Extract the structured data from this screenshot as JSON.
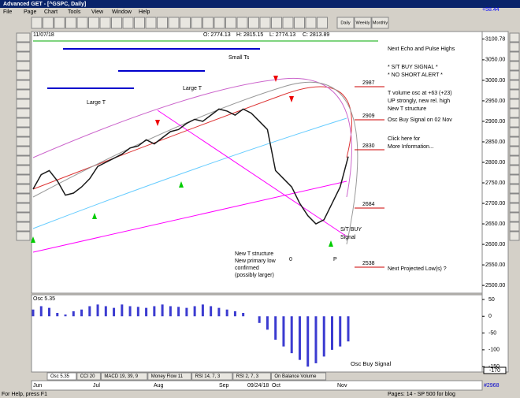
{
  "window": {
    "title": "Advanced GET - [^GSPC, Daily]",
    "change": "+58.44"
  },
  "menu": [
    "File",
    "Page",
    "Chart",
    "Tools",
    "View",
    "Window",
    "Help"
  ],
  "toolbar": [
    "Daily",
    "Weekly",
    "Monthly"
  ],
  "header": {
    "date": "11/07/18",
    "ohlc": [
      "O: 2774.13",
      "H: 2815.15",
      "L: 2774.13",
      "C: 2813.89"
    ]
  },
  "chart_data": {
    "type": "line",
    "color": "#1a1a1a",
    "values": [
      2735,
      2770,
      2780,
      2755,
      2720,
      2725,
      2740,
      2760,
      2790,
      2800,
      2810,
      2820,
      2835,
      2840,
      2855,
      2845,
      2860,
      2875,
      2880,
      2895,
      2905,
      2900,
      2915,
      2930,
      2925,
      2915,
      2930,
      2920,
      2900,
      2880,
      2780,
      2760,
      2740,
      2700,
      2670,
      2650,
      2660,
      2700,
      2740,
      2814
    ],
    "ylim": [
      2481,
      3119
    ],
    "yticks": [
      {
        "value": 3100.78,
        "label": "3100.78"
      },
      {
        "value": 3050,
        "label": "3050.00"
      },
      {
        "value": 3000,
        "label": "3000.00"
      },
      {
        "value": 2950,
        "label": "2950.00"
      },
      {
        "value": 2900,
        "label": "2900.00"
      },
      {
        "value": 2850,
        "label": "2850.00"
      },
      {
        "value": 2800,
        "label": "2800.00"
      },
      {
        "value": 2750,
        "label": "2750.00"
      },
      {
        "value": 2700,
        "label": "2700.00"
      },
      {
        "value": 2650,
        "label": "2650.00"
      },
      {
        "value": 2600,
        "label": "2600.00"
      },
      {
        "value": 2550,
        "label": "2550.00"
      },
      {
        "value": 2500,
        "label": "2500.00"
      }
    ]
  },
  "annotations": [
    "Next Echo and Pulse Highs",
    "* S/T BUY SIGNAL *",
    "* NO SHORT ALERT *",
    "2987",
    "T volume osc at +63 (+23)",
    "UP strongly, new rel. high",
    "New T structure",
    "2909",
    "Osc Buy Signal on 02 Nov",
    "Click here for",
    "More Information...",
    "2830",
    "2684",
    "S/T BUY",
    "Signal",
    "New T structure",
    "New primary low",
    "confirmed",
    "(possibly larger)",
    "0",
    "P",
    "2538",
    "Next Projected Low(s) ?",
    "Small Ts",
    "Large T",
    "Large T"
  ],
  "osc_panel": {
    "type": "bar",
    "title": "Osc 5.35",
    "color": "#3b3bd0",
    "values": [
      20,
      30,
      25,
      10,
      5,
      15,
      20,
      30,
      35,
      30,
      25,
      35,
      30,
      28,
      25,
      30,
      35,
      30,
      28,
      25,
      30,
      35,
      30,
      25,
      20,
      15,
      10,
      0,
      -20,
      -40,
      -70,
      -90,
      -110,
      -130,
      -150,
      -140,
      -120,
      -100,
      -90,
      -75
    ],
    "ylim": [
      -166,
      64
    ],
    "yticks": [
      50,
      0,
      -50,
      -100,
      -150
    ],
    "scale_box": -170,
    "annotation": "Osc Buy Signal"
  },
  "tabs": [
    "Osc 5.35",
    "CCI 20",
    "MACD 19, 39, 9",
    "Money Flow 11",
    "RSI 14, 7, 3",
    "RSI 2, 7, 3",
    "On Balance Volume"
  ],
  "date_axis": [
    "Jun",
    "Jul",
    "Aug",
    "Sep",
    "09/24/18",
    "Oct",
    "Nov"
  ],
  "bar_count": "#2968",
  "status": {
    "help": "For Help, press F1",
    "pages": "Pages: 14 - SP 500 for blog"
  }
}
